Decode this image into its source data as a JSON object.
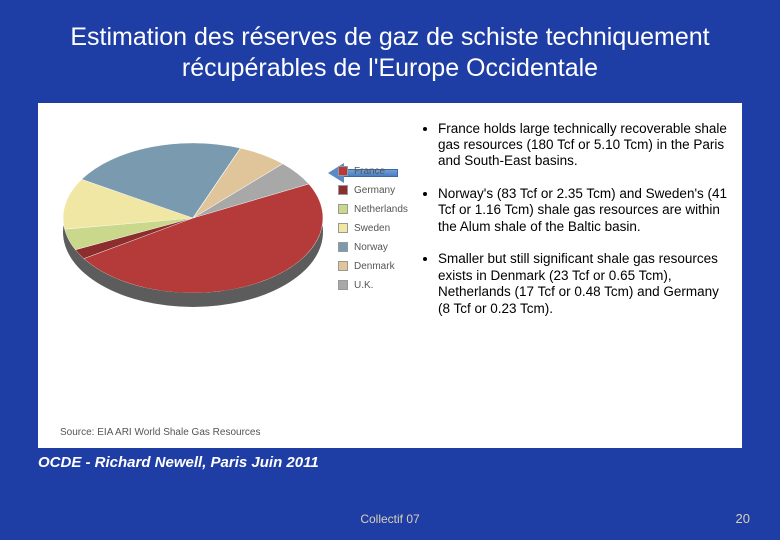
{
  "slide": {
    "background": "#1f3ea5",
    "title": "Estimation des réserves de gaz de schiste techniquement récupérables de l'Europe Occidentale",
    "caption": "OCDE - Richard Newell, Paris Juin 2011",
    "footer_center": "Collectif 07",
    "page_number": "20"
  },
  "chart": {
    "type": "pie-3d",
    "source_note": "Source: EIA ARI World Shale Gas Resources",
    "arrow_target": "France",
    "slices": [
      {
        "label": "France",
        "value": 180,
        "color": "#b53a3a"
      },
      {
        "label": "Germany",
        "value": 8,
        "color": "#8c2e2e"
      },
      {
        "label": "Netherlands",
        "value": 17,
        "color": "#c9d88a"
      },
      {
        "label": "Sweden",
        "value": 41,
        "color": "#f0e7a5"
      },
      {
        "label": "Norway",
        "value": 83,
        "color": "#7a9ab0"
      },
      {
        "label": "Denmark",
        "value": 23,
        "color": "#e0c49a"
      },
      {
        "label": "U.K.",
        "value": 20,
        "color": "#a8a8a8"
      }
    ],
    "legend_font_size": 10
  },
  "bullets": [
    "France holds large technically recoverable shale gas resources (180 Tcf or 5.10 Tcm) in the Paris and South-East basins.",
    "Norway's (83 Tcf or 2.35 Tcm) and Sweden's (41 Tcf or 1.16 Tcm) shale gas resources are within the Alum shale of the Baltic basin.",
    "Smaller but still significant shale gas resources exists in Denmark (23 Tcf or 0.65 Tcm), Netherlands (17 Tcf or 0.48 Tcm) and Germany (8 Tcf or 0.23 Tcm)."
  ]
}
